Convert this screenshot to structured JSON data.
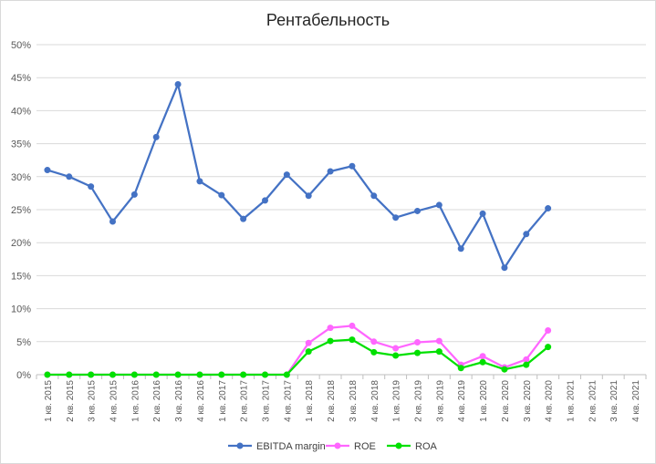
{
  "chart_data": {
    "type": "line",
    "title": "Рентабельность",
    "xlabel": "",
    "ylabel": "",
    "ylim": [
      0,
      50
    ],
    "yticks": [
      "0%",
      "5%",
      "10%",
      "15%",
      "20%",
      "25%",
      "30%",
      "35%",
      "40%",
      "45%",
      "50%"
    ],
    "grid": "horizontal",
    "legend": "bottom",
    "categories": [
      "1 кв. 2015",
      "2 кв. 2015",
      "3 кв. 2015",
      "4 кв. 2015",
      "1 кв. 2016",
      "2 кв. 2016",
      "3 кв. 2016",
      "4 кв. 2016",
      "1 кв. 2017",
      "2 кв. 2017",
      "3 кв. 2017",
      "4 кв. 2017",
      "1 кв. 2018",
      "2 кв. 2018",
      "3 кв. 2018",
      "4 кв. 2018",
      "1 кв. 2019",
      "2 кв. 2019",
      "3 кв. 2019",
      "4 кв. 2019",
      "1 кв. 2020",
      "2 кв. 2020",
      "3 кв. 2020",
      "4 кв. 2020",
      "1 кв. 2021",
      "2 кв. 2021",
      "3 кв. 2021",
      "4 кв. 2021"
    ],
    "series": [
      {
        "name": "EBITDA margin",
        "color": "#4472C4",
        "values": [
          31.0,
          30.0,
          28.5,
          23.2,
          27.3,
          36.0,
          44.0,
          29.3,
          27.2,
          23.6,
          26.4,
          30.3,
          27.1,
          30.8,
          31.6,
          27.1,
          23.8,
          24.8,
          25.7,
          19.1,
          24.4,
          16.2,
          21.3,
          25.2,
          null,
          null,
          null,
          null
        ]
      },
      {
        "name": "ROE",
        "color": "#FF66FF",
        "values": [
          0,
          0,
          0,
          0,
          0,
          0,
          0,
          0,
          0,
          0,
          0,
          0,
          4.8,
          7.1,
          7.4,
          5.0,
          4.0,
          4.9,
          5.1,
          1.5,
          2.8,
          1.1,
          2.3,
          6.7,
          null,
          null,
          null,
          null
        ]
      },
      {
        "name": "ROA",
        "color": "#00E000",
        "values": [
          0,
          0,
          0,
          0,
          0,
          0,
          0,
          0,
          0,
          0,
          0,
          0,
          3.5,
          5.1,
          5.3,
          3.4,
          2.9,
          3.3,
          3.5,
          1.0,
          1.9,
          0.8,
          1.5,
          4.2,
          null,
          null,
          null,
          null
        ]
      }
    ]
  }
}
